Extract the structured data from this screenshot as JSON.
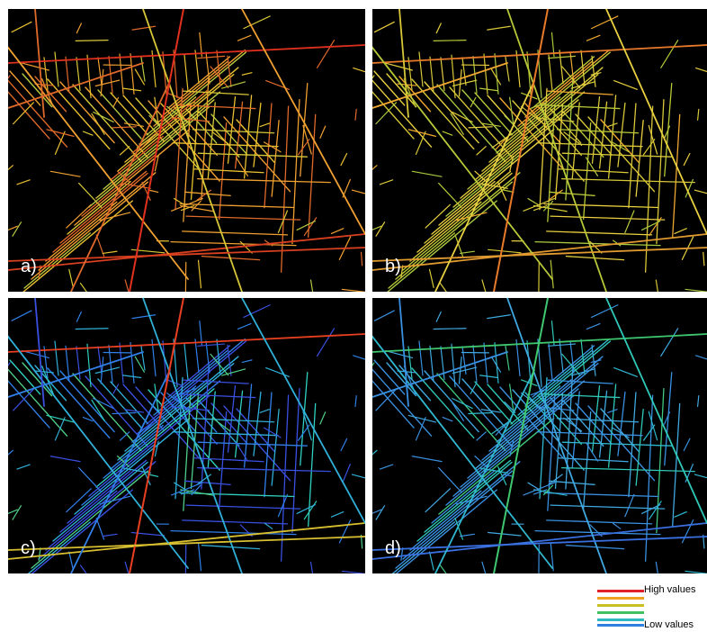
{
  "panels": [
    {
      "label": "a)",
      "palette": [
        "#e06a2a",
        "#f0a030",
        "#e8c030",
        "#d8c838",
        "#b8c840"
      ],
      "highlight": [
        "#e0301e",
        "#d84020"
      ],
      "weights": [
        0.25,
        0.3,
        0.25,
        0.12,
        0.08
      ]
    },
    {
      "label": "b)",
      "palette": [
        "#d8c838",
        "#e8d040",
        "#b8c838",
        "#a8c840",
        "#f0a830"
      ],
      "highlight": [
        "#e87a2a",
        "#e09a30"
      ],
      "weights": [
        0.35,
        0.25,
        0.2,
        0.1,
        0.1
      ]
    },
    {
      "label": "c)",
      "palette": [
        "#3a50e0",
        "#3080e8",
        "#30b0d8",
        "#30d0c0",
        "#50d088"
      ],
      "highlight": [
        "#e84020",
        "#d8c030"
      ],
      "weights": [
        0.3,
        0.3,
        0.2,
        0.12,
        0.08
      ]
    },
    {
      "label": "d)",
      "palette": [
        "#3a90e0",
        "#40a8e0",
        "#30b8d0",
        "#30c8b8",
        "#40c880"
      ],
      "highlight": [
        "#40c870",
        "#3a70e0"
      ],
      "weights": [
        0.45,
        0.25,
        0.15,
        0.1,
        0.05
      ]
    }
  ],
  "legend": {
    "high_label": "High values",
    "low_label": "Low values",
    "colors": [
      "#e0202a",
      "#f0a020",
      "#c8c020",
      "#40c060",
      "#30b8c0",
      "#3080e0"
    ]
  }
}
